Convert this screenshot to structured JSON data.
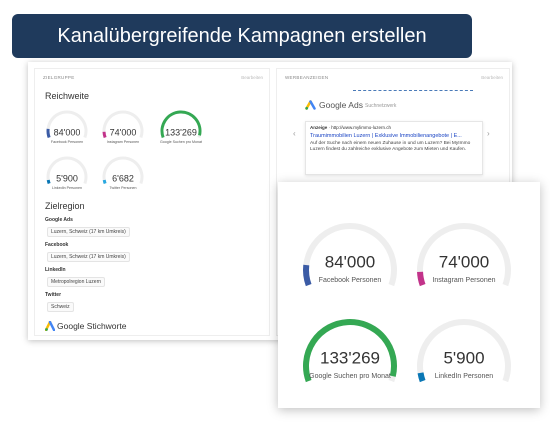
{
  "banner": "Kanalübergreifende Kampagnen erstellen",
  "left_panel": {
    "header": "ZIELGRUPPE",
    "edit": "Bearbeiten",
    "reach_title": "Reichweite",
    "gauges": [
      {
        "value": "84'000",
        "label": "Facebook Personen"
      },
      {
        "value": "74'000",
        "label": "Instagram Personen"
      },
      {
        "value": "133'269",
        "label": "Google Suchen pro Monat"
      },
      {
        "value": "5'900",
        "label": "LinkedIn Personen"
      },
      {
        "value": "6'682",
        "label": "Twitter Personen"
      }
    ],
    "region_title": "Zielregion",
    "regions": [
      {
        "channel": "Google Ads",
        "location": "Luzern, Schweiz (17 km Umkreis)"
      },
      {
        "channel": "Facebook",
        "location": "Luzern, Schweiz (17 km Umkreis)"
      },
      {
        "channel": "LinkedIn",
        "location": "Metropolregion Luzern"
      },
      {
        "channel": "Twitter",
        "location": "Schweiz"
      }
    ],
    "keywords_title": "Google Stichworte"
  },
  "ad_panel": {
    "header": "WERBEANZEIGEN",
    "edit": "Bearbeiten",
    "brand": "Google Ads",
    "brand_suffix": "Suchnetzwerk",
    "ad_badge": "Anzeige",
    "ad_url": "http://www.mylimmo-luzern.ch",
    "ad_headline": "Traumimmobilien Luzern | Exklusive Immobilienangebote | E...",
    "ad_text": "Auf der Suche nach einem neuen Zuhause in und um Luzern? Bei MyImmo Luzern findest du zahlreiche exklusive Angebote zum Mieten und Kaufen."
  },
  "zoom_panel": {
    "gauges": [
      {
        "value": "84'000",
        "label": "Facebook Personen"
      },
      {
        "value": "74'000",
        "label": "Instagram Personen"
      },
      {
        "value": "133'269",
        "label": "Google Suchen pro Monat"
      },
      {
        "value": "5'900",
        "label": "LinkedIn Personen"
      }
    ]
  }
}
